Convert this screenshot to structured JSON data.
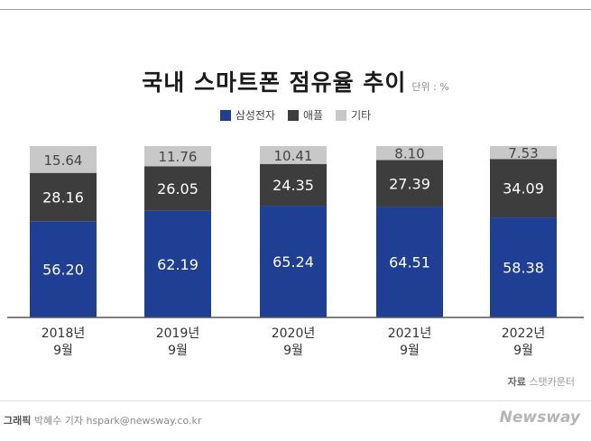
{
  "title": "국내 스마트폰 점유율 추이",
  "unit": "단위 : %",
  "colors": {
    "samsung": "#1f3f94",
    "apple": "#3d3d3d",
    "others": "#c8c8c8",
    "axis": "#555555"
  },
  "chart_data": {
    "type": "bar",
    "stacked": true,
    "categories": [
      [
        "2018년",
        "9월"
      ],
      [
        "2019년",
        "9월"
      ],
      [
        "2020년",
        "9월"
      ],
      [
        "2021년",
        "9월"
      ],
      [
        "2022년",
        "9월"
      ]
    ],
    "series": [
      {
        "name": "삼성전자",
        "color": "#1f3f94",
        "label_color": "#ffffff",
        "values": [
          56.2,
          62.19,
          65.24,
          64.51,
          58.38
        ]
      },
      {
        "name": "애플",
        "color": "#3d3d3d",
        "label_color": "#ffffff",
        "values": [
          28.16,
          26.05,
          24.35,
          27.39,
          34.09
        ]
      },
      {
        "name": "기타",
        "color": "#c8c8c8",
        "label_color": "#444444",
        "values": [
          15.64,
          11.76,
          10.41,
          8.1,
          7.53
        ]
      }
    ],
    "ylim": [
      0,
      100
    ],
    "grid": false,
    "legend": "top-center"
  },
  "source": {
    "label": "자료",
    "text": "스탯카운터"
  },
  "credit": {
    "label": "그래픽",
    "text": "박혜수 기자 hspark@newsway.co.kr"
  },
  "brand": "Newsway"
}
